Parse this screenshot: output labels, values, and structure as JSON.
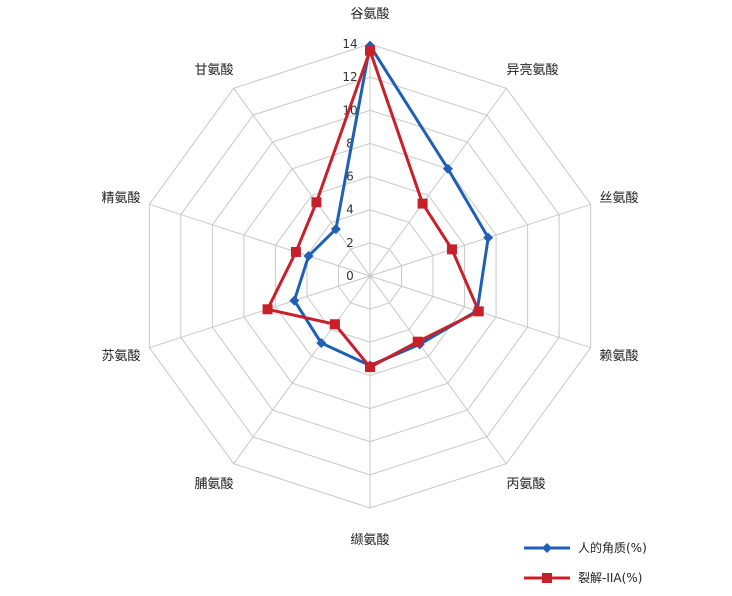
{
  "chart_data": {
    "type": "radar",
    "title": "",
    "axes": [
      "谷氨酸",
      "异亮氨酸",
      "丝氨酸",
      "赖氨酸",
      "丙氨酸",
      "缬氨酸",
      "脯氨酸",
      "苏氨酸",
      "精氨酸",
      "甘氨酸"
    ],
    "rlim": [
      0,
      14
    ],
    "ticks": [
      "0",
      "2",
      "4",
      "6",
      "8",
      "10",
      "12",
      "14"
    ],
    "grid": true,
    "legend_position": "bottom-right",
    "series": [
      {
        "name": "人的角质(%)",
        "color": "#1f5fb4",
        "marker": "diamond",
        "values": [
          13.9,
          8.0,
          7.5,
          6.8,
          5.1,
          5.4,
          5.0,
          4.8,
          3.9,
          3.5
        ]
      },
      {
        "name": "裂解-IIA(%)",
        "color": "#c8202a",
        "marker": "square",
        "values": [
          13.6,
          5.4,
          5.2,
          6.9,
          4.9,
          5.5,
          3.6,
          6.5,
          4.7,
          5.5
        ]
      }
    ]
  }
}
